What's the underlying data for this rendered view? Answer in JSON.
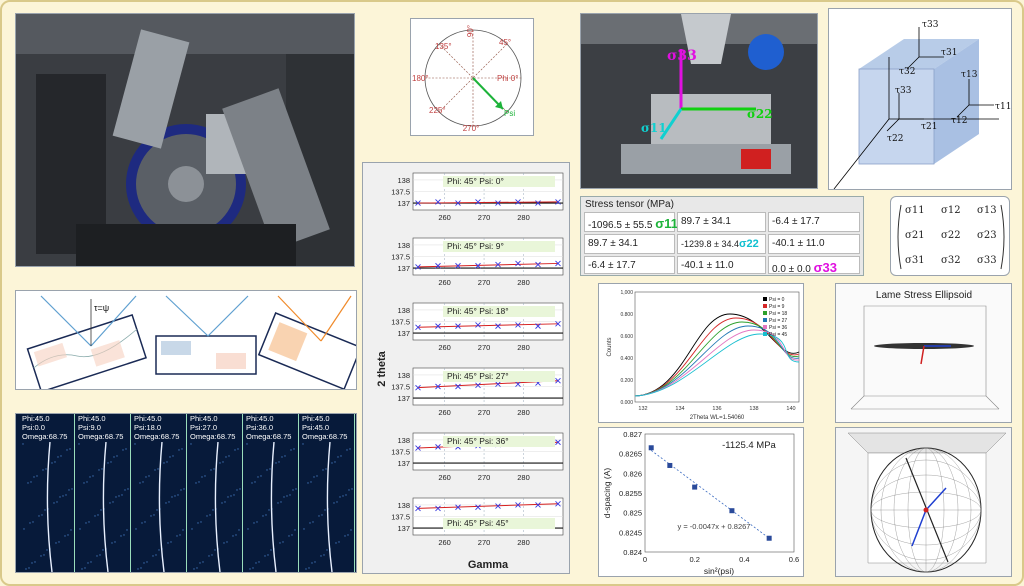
{
  "polar": {
    "angles": [
      "90°",
      "45°",
      "Phi 0°",
      "135°",
      "180°",
      "225°",
      "270°"
    ],
    "psi": "Psi"
  },
  "cube": {
    "labels": [
      "τ33",
      "τ31",
      "τ32",
      "τ33",
      "τ13",
      "τ11",
      "τ12",
      "τ21",
      "τ22"
    ]
  },
  "matrix": {
    "cells": [
      "σ11",
      "σ12",
      "σ13",
      "σ21",
      "σ22",
      "σ23",
      "σ31",
      "σ32",
      "σ33"
    ]
  },
  "stress_tensor": {
    "title": "Stress tensor (MPa)",
    "cells": [
      "-1096.5 ± 55.5",
      "89.7 ± 34.1",
      "-6.4 ± 17.7",
      "89.7 ± 34.1",
      "-1239.8 ± 34.4",
      "-40.1 ± 11.0",
      "-6.4 ± 17.7",
      "-40.1 ± 11.0",
      "0.0 ± 0.0"
    ],
    "sigma": [
      "σ11",
      "σ22",
      "σ33"
    ]
  },
  "grain": {
    "tau": "τ=ψ"
  },
  "frames": [
    {
      "phi": "Phi:45.0",
      "psi": "Psi:0.0",
      "omega": "Omega:68.75"
    },
    {
      "phi": "Phi:45.0",
      "psi": "Psi:9.0",
      "omega": "Omega:68.75"
    },
    {
      "phi": "Phi:45.0",
      "psi": "Psi:18.0",
      "omega": "Omega:68.75"
    },
    {
      "phi": "Phi:45.0",
      "psi": "Psi:27.0",
      "omega": "Omega:68.75"
    },
    {
      "phi": "Phi:45.0",
      "psi": "Psi:36.0",
      "omega": "Omega:68.75"
    },
    {
      "phi": "Phi:45.0",
      "psi": "Psi:45.0",
      "omega": "Omega:68.75"
    }
  ],
  "chart_data": [
    {
      "type": "line",
      "ylabel": "2 theta",
      "xlabel": "Gamma",
      "xticks": [
        "260",
        "270",
        "280"
      ],
      "yticks": [
        "138",
        "137.5",
        "137"
      ],
      "xlim": [
        252,
        290
      ],
      "ylim": [
        136.7,
        138.3
      ],
      "panels": [
        {
          "label": "Phi: 45°   Psi: 0°",
          "values": [
            137.0,
            137.05,
            137.0,
            137.05,
            137.0,
            137.05,
            137.0,
            137.05
          ]
        },
        {
          "label": "Phi: 45°   Psi: 9°",
          "values": [
            137.05,
            137.1,
            137.1,
            137.1,
            137.15,
            137.2,
            137.15,
            137.2
          ]
        },
        {
          "label": "Phi: 45°   Psi: 18°",
          "values": [
            137.25,
            137.3,
            137.3,
            137.35,
            137.3,
            137.35,
            137.3,
            137.4
          ]
        },
        {
          "label": "Phi: 45°   Psi: 27°",
          "values": [
            137.45,
            137.5,
            137.5,
            137.55,
            137.6,
            137.6,
            137.65,
            137.75
          ]
        },
        {
          "label": "Phi: 45°   Psi: 36°",
          "values": [
            137.65,
            137.7,
            137.7,
            137.75,
            137.8,
            137.85,
            137.85,
            137.9
          ]
        },
        {
          "label": "Phi: 45°   Psi: 45°",
          "values": [
            137.85,
            137.85,
            137.9,
            137.9,
            137.95,
            138.0,
            138.0,
            138.05
          ]
        }
      ]
    },
    {
      "type": "line",
      "xlabel": "2Theta WL=1.54060",
      "ylabel": "Counts",
      "xticks": [
        "132",
        "134",
        "136",
        "138",
        "140"
      ],
      "yticks": [
        "1,000",
        "0.800",
        "0.600",
        "0.400",
        "0.200",
        "0.000"
      ],
      "legend": [
        "Psi = 0",
        "Psi = 9",
        "Psi = 18",
        "Psi = 27",
        "Psi = 36",
        "Psi = 45"
      ],
      "colors": [
        "#000000",
        "#d62728",
        "#2ca02c",
        "#1f77b4",
        "#e377c2",
        "#17becf"
      ]
    },
    {
      "type": "scatter",
      "title": "-1125.4 MPa",
      "xlabel": "sin²(psi)",
      "ylabel": "d-spacing (A)",
      "xticks": [
        "0",
        "0.2",
        "0.4",
        "0.6"
      ],
      "yticks": [
        "0.827",
        "0.8265",
        "0.826",
        "0.8255",
        "0.825",
        "0.8245",
        "0.824"
      ],
      "xlim": [
        0,
        0.6
      ],
      "ylim": [
        0.824,
        0.827
      ],
      "x": [
        0.025,
        0.1,
        0.2,
        0.35,
        0.5
      ],
      "y": [
        0.82665,
        0.8262,
        0.82565,
        0.82505,
        0.82435
      ],
      "fit": "y = -0.0047x + 0.8267"
    },
    {
      "type": "other",
      "title": "Lame Stress Ellipsoid"
    }
  ]
}
